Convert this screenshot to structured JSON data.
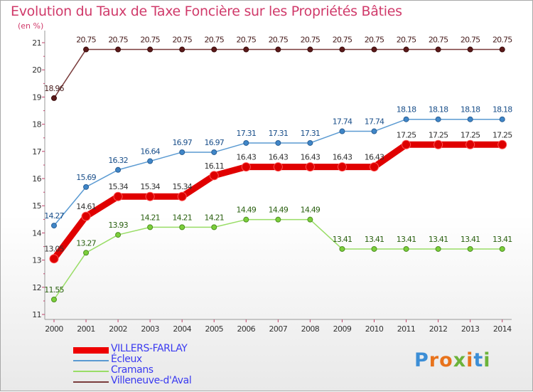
{
  "title": "Evolution du Taux de Taxe Foncière sur les Propriétés Bâties",
  "unit": "(en %)",
  "chart_data": {
    "type": "line",
    "title": "Evolution du Taux de Taxe Foncière sur les Propriétés Bâties",
    "ylabel": "(en %)",
    "xlabel": "",
    "ylim": [
      11,
      21
    ],
    "yticks": [
      "11",
      "12",
      "13",
      "14",
      "15",
      "16",
      "17",
      "18",
      "19",
      "20",
      "21"
    ],
    "categories": [
      "2000",
      "2001",
      "2002",
      "2003",
      "2004",
      "2005",
      "2006",
      "2007",
      "2008",
      "2009",
      "2010",
      "2011",
      "2012",
      "2013",
      "2014"
    ],
    "series": [
      {
        "name": "VILLERS-FARLAY",
        "color": "#ee0000",
        "values": [
          13.05,
          14.61,
          15.34,
          15.34,
          15.34,
          16.11,
          16.43,
          16.43,
          16.43,
          16.43,
          16.43,
          17.25,
          17.25,
          17.25,
          17.25
        ],
        "labels": [
          "13.05",
          "14.61",
          "15.34",
          "15.34",
          "15.34",
          "16.11",
          "16.43",
          "16.43",
          "16.43",
          "16.43",
          "16.43",
          "17.25",
          "17.25",
          "17.25",
          "17.25"
        ]
      },
      {
        "name": "Écleux",
        "color": "#5a9ad2",
        "values": [
          14.27,
          15.69,
          16.32,
          16.64,
          16.97,
          16.97,
          17.31,
          17.31,
          17.31,
          17.74,
          17.74,
          18.18,
          18.18,
          18.18,
          18.18
        ],
        "labels": [
          "14.27",
          "15.69",
          "16.32",
          "16.64",
          "16.97",
          "16.97",
          "17.31",
          "17.31",
          "17.31",
          "17.74",
          "17.74",
          "18.18",
          "18.18",
          "18.18",
          "18.18"
        ]
      },
      {
        "name": "Cramans",
        "color": "#99dd66",
        "values": [
          11.55,
          13.27,
          13.93,
          14.21,
          14.21,
          14.21,
          14.49,
          14.49,
          14.49,
          13.41,
          13.41,
          13.41,
          13.41,
          13.41,
          13.41
        ],
        "labels": [
          "11.55",
          "13.27",
          "13.93",
          "14.21",
          "14.21",
          "14.21",
          "14.49",
          "14.49",
          "14.49",
          "13.41",
          "13.41",
          "13.41",
          "13.41",
          "13.41",
          "13.41"
        ]
      },
      {
        "name": "Villeneuve-d'Aval",
        "color": "#7a3c3c",
        "values": [
          18.96,
          20.75,
          20.75,
          20.75,
          20.75,
          20.75,
          20.75,
          20.75,
          20.75,
          20.75,
          20.75,
          20.75,
          20.75,
          20.75,
          20.75
        ],
        "labels": [
          "18.96",
          "20.75",
          "20.75",
          "20.75",
          "20.75",
          "20.75",
          "20.75",
          "20.75",
          "20.75",
          "20.75",
          "20.75",
          "20.75",
          "20.75",
          "20.75",
          "20.75"
        ]
      }
    ]
  },
  "logo": {
    "text": "Proxiti",
    "colors": [
      "#3c8ed6",
      "#e8731c",
      "#e8731c",
      "#6cb33a",
      "#e8731c",
      "#3c8ed6",
      "#6cb33a"
    ]
  }
}
